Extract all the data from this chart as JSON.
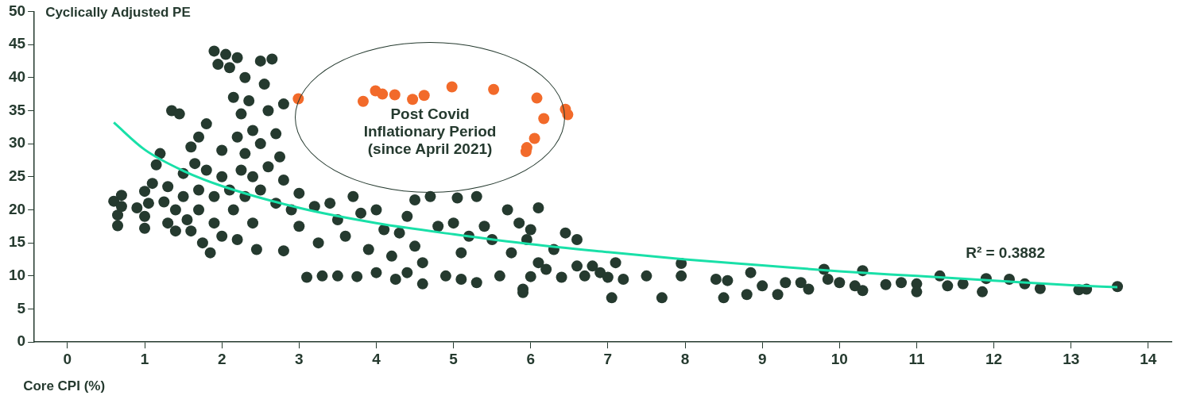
{
  "chart_data": {
    "type": "scatter",
    "xlabel": "Core CPI (%)",
    "ylabel": "Cyclically Adjusted PE",
    "xlim": [
      -0.43,
      14.3
    ],
    "xticks": [
      0,
      1,
      2,
      3,
      4,
      5,
      6,
      7,
      8,
      9,
      10,
      11,
      12,
      13,
      14
    ],
    "ylim": [
      0,
      50
    ],
    "yticks": [
      0,
      5,
      10,
      15,
      20,
      25,
      30,
      35,
      40,
      45,
      50
    ],
    "grid": false,
    "legend": false,
    "marker": "circle",
    "series": [
      {
        "color": "#253a2f",
        "x": [
          0.6,
          0.65,
          0.65,
          0.7,
          0.7,
          0.9,
          1.0,
          1.0,
          1.0,
          1.05,
          1.1,
          1.15,
          1.2,
          1.25,
          1.3,
          1.3,
          1.35,
          1.4,
          1.4,
          1.45,
          1.5,
          1.5,
          1.55,
          1.6,
          1.6,
          1.65,
          1.7,
          1.7,
          1.7,
          1.75,
          1.8,
          1.8,
          1.85,
          1.9,
          1.9,
          1.9,
          1.95,
          2.0,
          2.0,
          2.0,
          2.05,
          2.1,
          2.1,
          2.15,
          2.15,
          2.2,
          2.2,
          2.2,
          2.25,
          2.25,
          2.3,
          2.3,
          2.3,
          2.35,
          2.4,
          2.4,
          2.4,
          2.45,
          2.5,
          2.5,
          2.5,
          2.55,
          2.6,
          2.6,
          2.65,
          2.7,
          2.7,
          2.75,
          2.8,
          2.8,
          2.8,
          2.9,
          3.0,
          3.0,
          3.1,
          3.2,
          3.25,
          3.3,
          3.4,
          3.5,
          3.5,
          3.6,
          3.7,
          3.75,
          3.8,
          3.9,
          4.0,
          4.0,
          4.1,
          4.2,
          4.25,
          4.3,
          4.4,
          4.4,
          4.5,
          4.5,
          4.6,
          4.6,
          4.7,
          4.8,
          4.9,
          5.0,
          5.05,
          5.1,
          5.1,
          5.2,
          5.3,
          5.3,
          5.4,
          5.5,
          5.6,
          5.7,
          5.75,
          5.85,
          5.9,
          5.9,
          5.95,
          6.0,
          6.0,
          6.1,
          6.1,
          6.2,
          6.3,
          6.4,
          6.45,
          6.6,
          6.6,
          6.7,
          6.8,
          6.9,
          7.0,
          7.05,
          7.1,
          7.2,
          7.5,
          7.7,
          7.95,
          7.95,
          8.4,
          8.5,
          8.55,
          8.8,
          8.85,
          9.0,
          9.2,
          9.3,
          9.5,
          9.6,
          9.8,
          9.85,
          10.0,
          10.2,
          10.3,
          10.3,
          10.6,
          10.8,
          11.0,
          11.0,
          11.3,
          11.4,
          11.6,
          11.85,
          11.9,
          12.2,
          12.4,
          12.6,
          13.1,
          13.2,
          13.6
        ],
        "values": [
          21.3,
          19.2,
          17.6,
          22.2,
          20.5,
          20.3,
          22.8,
          19.0,
          17.2,
          21.0,
          24.0,
          26.8,
          28.5,
          21.2,
          23.5,
          18.0,
          35.0,
          20.0,
          16.8,
          34.5,
          25.5,
          22.0,
          18.5,
          29.5,
          16.8,
          27.0,
          31.0,
          23.0,
          20.0,
          15.0,
          33.0,
          26.0,
          13.5,
          44.0,
          22.0,
          18.0,
          42.0,
          29.0,
          25.0,
          16.0,
          43.5,
          41.5,
          23.0,
          37.0,
          20.0,
          43.0,
          31.0,
          15.5,
          34.5,
          26.0,
          40.0,
          28.5,
          22.0,
          36.5,
          32.0,
          25.0,
          18.0,
          14.0,
          42.5,
          30.0,
          23.0,
          39.0,
          35.0,
          26.5,
          42.8,
          31.5,
          21.0,
          28.0,
          36.0,
          24.5,
          13.8,
          20.0,
          22.5,
          17.5,
          9.8,
          20.5,
          15.0,
          10.0,
          21.0,
          18.5,
          10.0,
          16.0,
          22.0,
          9.9,
          19.5,
          14.0,
          20.0,
          10.5,
          17.0,
          13.0,
          9.5,
          16.5,
          19.0,
          10.5,
          21.5,
          14.5,
          12.0,
          8.8,
          22.0,
          17.5,
          10.0,
          18.0,
          21.8,
          13.5,
          9.5,
          16.0,
          22.0,
          9.0,
          17.5,
          15.5,
          10.0,
          20.0,
          13.5,
          18.0,
          8.0,
          7.5,
          15.5,
          17.0,
          9.9,
          20.3,
          12.0,
          11.0,
          14.0,
          9.8,
          16.5,
          15.5,
          11.5,
          10.0,
          11.5,
          10.5,
          9.8,
          6.7,
          12.0,
          9.5,
          10.0,
          6.7,
          11.9,
          10.0,
          9.5,
          6.7,
          9.3,
          7.2,
          10.5,
          8.5,
          7.2,
          9.0,
          9.0,
          8.0,
          11.0,
          9.5,
          9.0,
          8.5,
          10.8,
          7.8,
          8.7,
          9.0,
          8.8,
          7.6,
          10.0,
          8.5,
          8.8,
          7.6,
          9.6,
          9.5,
          8.8,
          8.1,
          7.9,
          8.0,
          8.4
        ]
      },
      {
        "color": "#f26a2a",
        "x": [
          2.99,
          3.83,
          3.99,
          4.08,
          4.24,
          4.47,
          4.62,
          4.98,
          5.52,
          6.08,
          6.17,
          6.05,
          5.95,
          5.94,
          6.45,
          6.48
        ],
        "values": [
          36.8,
          36.4,
          38.0,
          37.5,
          37.4,
          36.7,
          37.3,
          38.6,
          38.2,
          36.9,
          33.8,
          30.8,
          29.4,
          28.8,
          35.2,
          34.4
        ]
      },
      {
        "type": "line",
        "color": "#19e0a8",
        "marker": "none",
        "x": [
          0.6,
          1,
          1.5,
          2,
          3,
          4,
          5,
          6,
          7,
          8,
          9,
          10,
          11,
          12,
          13,
          13.6
        ],
        "values": [
          33.2,
          29.1,
          25.9,
          23.6,
          20.3,
          18.0,
          16.3,
          14.8,
          13.6,
          12.5,
          11.6,
          10.7,
          10.0,
          9.3,
          8.6,
          8.3
        ]
      }
    ],
    "annotations": [
      "Post Covid Inflationary Period (since April 2021)",
      "R² = 0.3882"
    ]
  }
}
